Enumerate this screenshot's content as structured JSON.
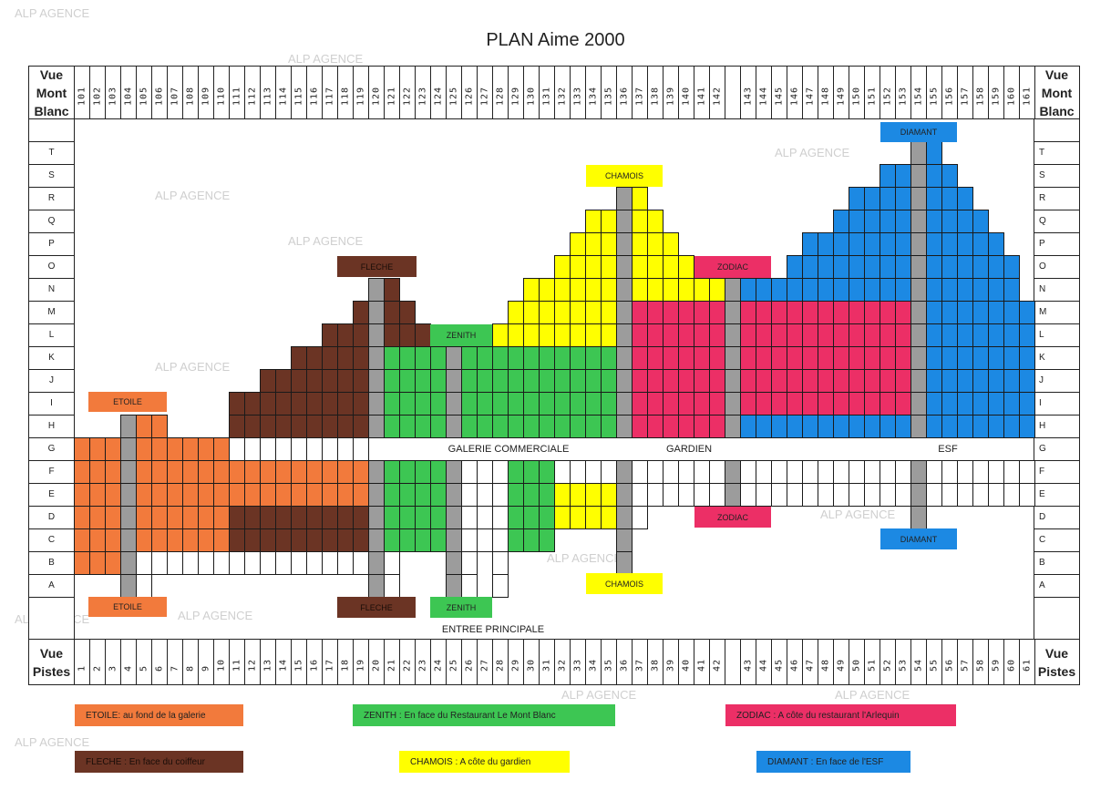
{
  "title": "PLAN Aime 2000",
  "watermark": "ALP AGENCE",
  "headers": {
    "top_left": "Vue Mont Blanc",
    "top_right": "Vue Mont Blanc",
    "bottom_left": "Vue Pistes",
    "bottom_right": "Vue Pistes"
  },
  "top_numbers": [
    "101",
    "102",
    "103",
    "104",
    "105",
    "106",
    "107",
    "108",
    "109",
    "110",
    "111",
    "112",
    "113",
    "114",
    "115",
    "116",
    "117",
    "118",
    "119",
    "120",
    "121",
    "122",
    "123",
    "124",
    "125",
    "126",
    "127",
    "128",
    "129",
    "130",
    "131",
    "132",
    "133",
    "134",
    "135",
    "136",
    "137",
    "138",
    "139",
    "140",
    "141",
    "142",
    "",
    "143",
    "144",
    "145",
    "146",
    "147",
    "148",
    "149",
    "150",
    "151",
    "152",
    "153",
    "154",
    "155",
    "156",
    "157",
    "158",
    "159",
    "160",
    "161"
  ],
  "bottom_numbers": [
    "1",
    "2",
    "3",
    "4",
    "5",
    "6",
    "7",
    "8",
    "9",
    "10",
    "11",
    "12",
    "13",
    "14",
    "15",
    "16",
    "17",
    "18",
    "19",
    "20",
    "21",
    "22",
    "23",
    "24",
    "25",
    "26",
    "27",
    "28",
    "29",
    "30",
    "31",
    "32",
    "33",
    "34",
    "35",
    "36",
    "37",
    "38",
    "39",
    "40",
    "41",
    "42",
    "",
    "43",
    "44",
    "45",
    "46",
    "47",
    "48",
    "49",
    "50",
    "51",
    "52",
    "53",
    "54",
    "55",
    "56",
    "57",
    "58",
    "59",
    "60",
    "61"
  ],
  "colors": {
    "O": "#f27a3c",
    "B": "#6b3424",
    "Z": "#3dc653",
    "Y": "#ffff00",
    "R": "#ec2f66",
    "D": "#1c89e3",
    "G": "#9c9c9c",
    "W": "#ffffff"
  },
  "building_codes": {
    "O": "ETOILE",
    "B": "FLECHE",
    "Z": "ZENITH",
    "Y": "CHAMOIS",
    "R": "ZODIAC",
    "D": "DIAMANT",
    "G": "stairwell",
    "W": "unassigned"
  },
  "rows": [
    {
      "label": "T",
      "spans": [
        [
          55,
          55,
          "G"
        ],
        [
          56,
          56,
          "D"
        ]
      ]
    },
    {
      "label": "S",
      "spans": [
        [
          53,
          54,
          "D"
        ],
        [
          55,
          55,
          "G"
        ],
        [
          56,
          57,
          "D"
        ]
      ]
    },
    {
      "label": "R",
      "spans": [
        [
          36,
          36,
          "G"
        ],
        [
          37,
          37,
          "Y"
        ],
        [
          51,
          54,
          "D"
        ],
        [
          55,
          55,
          "G"
        ],
        [
          56,
          58,
          "D"
        ]
      ]
    },
    {
      "label": "Q",
      "spans": [
        [
          34,
          35,
          "Y"
        ],
        [
          36,
          36,
          "G"
        ],
        [
          37,
          38,
          "Y"
        ],
        [
          50,
          54,
          "D"
        ],
        [
          55,
          55,
          "G"
        ],
        [
          56,
          59,
          "D"
        ]
      ]
    },
    {
      "label": "P",
      "spans": [
        [
          33,
          35,
          "Y"
        ],
        [
          36,
          36,
          "G"
        ],
        [
          37,
          39,
          "Y"
        ],
        [
          48,
          54,
          "D"
        ],
        [
          55,
          55,
          "G"
        ],
        [
          56,
          60,
          "D"
        ]
      ]
    },
    {
      "label": "O",
      "spans": [
        [
          32,
          35,
          "Y"
        ],
        [
          36,
          36,
          "G"
        ],
        [
          37,
          40,
          "Y"
        ],
        [
          47,
          54,
          "D"
        ],
        [
          55,
          55,
          "G"
        ],
        [
          56,
          61,
          "D"
        ]
      ]
    },
    {
      "label": "N",
      "spans": [
        [
          20,
          20,
          "G"
        ],
        [
          21,
          21,
          "B"
        ],
        [
          30,
          35,
          "Y"
        ],
        [
          36,
          36,
          "G"
        ],
        [
          37,
          42,
          "Y"
        ],
        [
          43,
          43,
          "G"
        ],
        [
          44,
          54,
          "D"
        ],
        [
          55,
          55,
          "G"
        ],
        [
          56,
          61,
          "D"
        ]
      ]
    },
    {
      "label": "M",
      "spans": [
        [
          19,
          19,
          "B"
        ],
        [
          20,
          20,
          "G"
        ],
        [
          21,
          22,
          "B"
        ],
        [
          29,
          35,
          "Y"
        ],
        [
          36,
          36,
          "G"
        ],
        [
          37,
          42,
          "R"
        ],
        [
          43,
          43,
          "G"
        ],
        [
          44,
          54,
          "R"
        ],
        [
          55,
          55,
          "G"
        ],
        [
          56,
          62,
          "D"
        ]
      ]
    },
    {
      "label": "L",
      "spans": [
        [
          17,
          19,
          "B"
        ],
        [
          20,
          20,
          "G"
        ],
        [
          21,
          23,
          "B"
        ],
        [
          28,
          35,
          "Y"
        ],
        [
          36,
          36,
          "G"
        ],
        [
          37,
          42,
          "R"
        ],
        [
          43,
          43,
          "G"
        ],
        [
          44,
          54,
          "R"
        ],
        [
          55,
          55,
          "G"
        ],
        [
          56,
          62,
          "D"
        ]
      ]
    },
    {
      "label": "K",
      "spans": [
        [
          15,
          19,
          "B"
        ],
        [
          20,
          20,
          "G"
        ],
        [
          21,
          24,
          "Z"
        ],
        [
          25,
          25,
          "G"
        ],
        [
          26,
          35,
          "Z"
        ],
        [
          36,
          36,
          "G"
        ],
        [
          37,
          42,
          "R"
        ],
        [
          43,
          43,
          "G"
        ],
        [
          44,
          54,
          "R"
        ],
        [
          55,
          55,
          "G"
        ],
        [
          56,
          62,
          "D"
        ]
      ]
    },
    {
      "label": "J",
      "spans": [
        [
          13,
          19,
          "B"
        ],
        [
          20,
          20,
          "G"
        ],
        [
          21,
          24,
          "Z"
        ],
        [
          25,
          25,
          "G"
        ],
        [
          26,
          35,
          "Z"
        ],
        [
          36,
          36,
          "G"
        ],
        [
          37,
          42,
          "R"
        ],
        [
          43,
          43,
          "G"
        ],
        [
          44,
          54,
          "R"
        ],
        [
          55,
          55,
          "G"
        ],
        [
          56,
          62,
          "D"
        ]
      ]
    },
    {
      "label": "I",
      "spans": [
        [
          11,
          19,
          "B"
        ],
        [
          20,
          20,
          "G"
        ],
        [
          21,
          24,
          "Z"
        ],
        [
          25,
          25,
          "G"
        ],
        [
          26,
          35,
          "Z"
        ],
        [
          36,
          36,
          "G"
        ],
        [
          37,
          42,
          "R"
        ],
        [
          43,
          43,
          "G"
        ],
        [
          44,
          54,
          "R"
        ],
        [
          55,
          55,
          "G"
        ],
        [
          56,
          62,
          "D"
        ]
      ]
    },
    {
      "label": "H",
      "spans": [
        [
          4,
          4,
          "G"
        ],
        [
          5,
          6,
          "O"
        ],
        [
          11,
          19,
          "B"
        ],
        [
          20,
          20,
          "G"
        ],
        [
          21,
          24,
          "Z"
        ],
        [
          25,
          25,
          "G"
        ],
        [
          26,
          35,
          "Z"
        ],
        [
          36,
          36,
          "G"
        ],
        [
          37,
          42,
          "R"
        ],
        [
          43,
          43,
          "G"
        ],
        [
          44,
          54,
          "D"
        ],
        [
          55,
          55,
          "G"
        ],
        [
          56,
          62,
          "D"
        ]
      ]
    },
    {
      "label": "G",
      "spans": [
        [
          1,
          3,
          "O"
        ],
        [
          4,
          4,
          "G"
        ],
        [
          5,
          10,
          "O"
        ],
        [
          11,
          19,
          "W"
        ]
      ]
    },
    {
      "label": "F",
      "spans": [
        [
          1,
          3,
          "O"
        ],
        [
          4,
          4,
          "G"
        ],
        [
          5,
          19,
          "O"
        ],
        [
          20,
          20,
          "G"
        ],
        [
          21,
          24,
          "Z"
        ],
        [
          25,
          25,
          "G"
        ],
        [
          26,
          28,
          "W"
        ],
        [
          29,
          31,
          "Z"
        ],
        [
          32,
          35,
          "W"
        ],
        [
          36,
          36,
          "G"
        ],
        [
          37,
          42,
          "W"
        ],
        [
          43,
          43,
          "G"
        ],
        [
          44,
          54,
          "W"
        ],
        [
          55,
          55,
          "G"
        ],
        [
          56,
          62,
          "W"
        ]
      ]
    },
    {
      "label": "E",
      "spans": [
        [
          1,
          3,
          "O"
        ],
        [
          4,
          4,
          "G"
        ],
        [
          5,
          19,
          "O"
        ],
        [
          20,
          20,
          "G"
        ],
        [
          21,
          24,
          "Z"
        ],
        [
          25,
          25,
          "G"
        ],
        [
          26,
          28,
          "W"
        ],
        [
          29,
          31,
          "Z"
        ],
        [
          32,
          35,
          "Y"
        ],
        [
          36,
          36,
          "G"
        ],
        [
          37,
          42,
          "W"
        ],
        [
          43,
          43,
          "G"
        ],
        [
          44,
          54,
          "W"
        ],
        [
          55,
          55,
          "G"
        ],
        [
          56,
          62,
          "W"
        ]
      ]
    },
    {
      "label": "D",
      "spans": [
        [
          1,
          3,
          "O"
        ],
        [
          4,
          4,
          "G"
        ],
        [
          5,
          10,
          "O"
        ],
        [
          11,
          19,
          "B"
        ],
        [
          20,
          20,
          "G"
        ],
        [
          21,
          24,
          "Z"
        ],
        [
          25,
          25,
          "G"
        ],
        [
          26,
          28,
          "W"
        ],
        [
          29,
          31,
          "Z"
        ],
        [
          32,
          35,
          "Y"
        ],
        [
          36,
          36,
          "G"
        ],
        [
          37,
          37,
          "W"
        ],
        [
          55,
          55,
          "G"
        ]
      ]
    },
    {
      "label": "C",
      "spans": [
        [
          1,
          3,
          "O"
        ],
        [
          4,
          4,
          "G"
        ],
        [
          5,
          10,
          "O"
        ],
        [
          11,
          19,
          "B"
        ],
        [
          20,
          20,
          "G"
        ],
        [
          21,
          24,
          "Z"
        ],
        [
          25,
          25,
          "G"
        ],
        [
          26,
          28,
          "W"
        ],
        [
          29,
          31,
          "Z"
        ],
        [
          36,
          36,
          "G"
        ]
      ]
    },
    {
      "label": "B",
      "spans": [
        [
          1,
          3,
          "O"
        ],
        [
          4,
          4,
          "G"
        ],
        [
          5,
          19,
          "W"
        ],
        [
          20,
          20,
          "G"
        ],
        [
          21,
          21,
          "W"
        ],
        [
          25,
          25,
          "G"
        ],
        [
          26,
          26,
          "W"
        ],
        [
          28,
          28,
          "W"
        ],
        [
          36,
          36,
          "G"
        ]
      ]
    },
    {
      "label": "A",
      "spans": [
        [
          4,
          4,
          "G"
        ],
        [
          5,
          5,
          "W"
        ],
        [
          20,
          20,
          "G"
        ],
        [
          21,
          21,
          "W"
        ],
        [
          25,
          25,
          "G"
        ],
        [
          26,
          26,
          "W"
        ],
        [
          28,
          28,
          "W"
        ]
      ]
    }
  ],
  "entrance_labels": {
    "etoile": "ETOILE",
    "fleche": "FLECHE",
    "zenith": "ZENITH",
    "chamois": "CHAMOIS",
    "zodiac": "ZODIAC",
    "diamant": "DIAMANT"
  },
  "areas": {
    "galerie": "GALERIE COMMERCIALE",
    "gardien": "GARDIEN",
    "esf": "ESF",
    "entree": "ENTREE PRINCIPALE"
  },
  "legend": [
    {
      "code": "O",
      "text": "ETOILE: au fond de la galerie"
    },
    {
      "code": "Z",
      "text": "ZENITH : En face du Restaurant Le Mont Blanc"
    },
    {
      "code": "R",
      "text": "ZODIAC : A côte du restaurant l'Arlequin"
    },
    {
      "code": "B",
      "text": "FLECHE : En face du coiffeur"
    },
    {
      "code": "Y",
      "text": "CHAMOIS : A côte du gardien"
    },
    {
      "code": "D",
      "text": "DIAMANT : En face de l'ESF"
    }
  ]
}
